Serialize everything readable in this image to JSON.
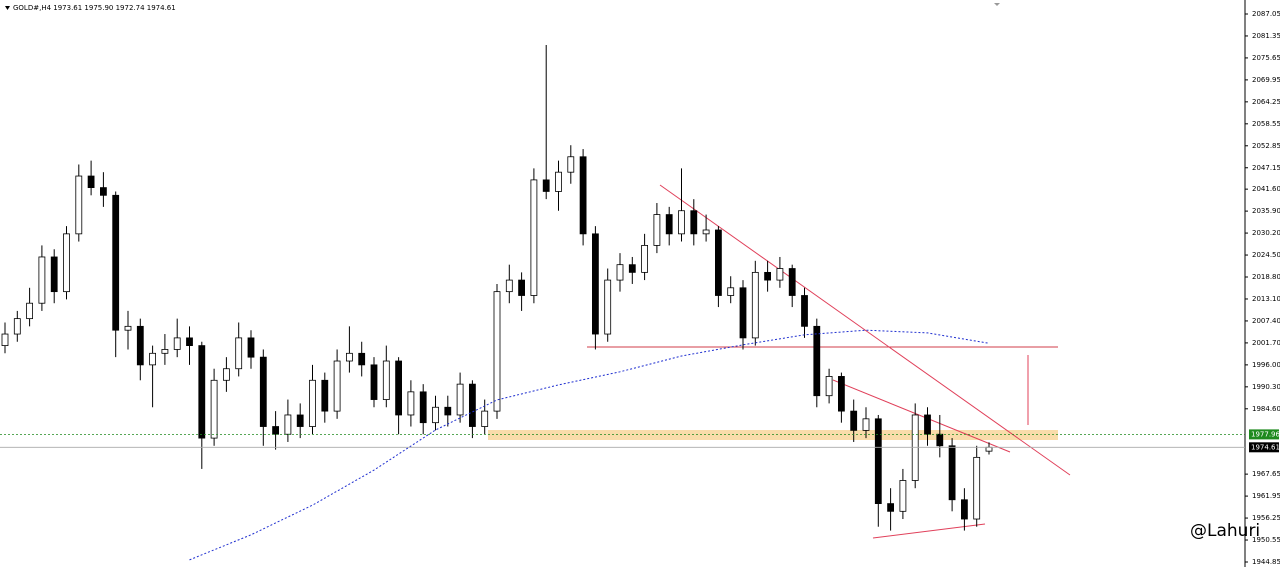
{
  "chart_data": {
    "type": "candlestick",
    "title": "GOLD#,H4  1973.61 1975.90 1972.74 1974.61",
    "watermark": "@Lahuri",
    "up_color": "#ffffff",
    "down_color": "#000000",
    "wick_color": "#000000",
    "open": [
      2001,
      2004,
      2008,
      2012,
      2024,
      2015,
      2030,
      2045,
      2042,
      2040,
      2005,
      2006,
      1996,
      1999,
      2000,
      2003,
      2001,
      1977,
      1992,
      1995,
      2003,
      1998,
      1980,
      1978,
      1983,
      1980,
      1992,
      1984,
      1997,
      1999,
      1996,
      1987,
      1997,
      1983,
      1989,
      1981,
      1985,
      1983,
      1991,
      1980,
      1984,
      2015,
      2018,
      2014,
      2044,
      2041,
      2046,
      2050,
      2030,
      2004,
      2018,
      2022,
      2020,
      2027,
      2035,
      2030,
      2036,
      2030,
      2031,
      2014,
      2016,
      2003,
      2020,
      2018,
      2021,
      2014,
      2006,
      1988,
      1993,
      1984,
      1979,
      1982,
      1960,
      1958,
      1966,
      1983,
      1978,
      1975,
      1961,
      1956,
      1973.61
    ],
    "high": [
      2007,
      2010,
      2016,
      2027,
      2026,
      2032,
      2048,
      2049,
      2046,
      2041,
      2010,
      2008,
      2001,
      2004,
      2008,
      2006,
      2002,
      1995,
      1998,
      2007,
      2005,
      2000,
      1984,
      1987,
      1986,
      1996,
      1994,
      2000,
      2006,
      2002,
      1998,
      2001,
      1998,
      1992,
      1991,
      1988,
      1988,
      1994,
      1992,
      1987,
      2017,
      2022,
      2020,
      2047,
      2079,
      2049,
      2053,
      2052,
      2032,
      2021,
      2025,
      2024,
      2030,
      2038,
      2037,
      2047,
      2039,
      2035,
      2032,
      2019,
      2018,
      2023,
      2023,
      2024,
      2022,
      2016,
      2008,
      1995,
      1994,
      1987,
      1985,
      1983,
      1964,
      1969,
      1986,
      1985,
      1983,
      1977,
      1964,
      1975,
      1975.9
    ],
    "low": [
      1999,
      2002,
      2006,
      2010,
      2012,
      2013,
      2028,
      2040,
      2037,
      1998,
      2000,
      1992,
      1985,
      1996,
      1998,
      1996,
      1969,
      1975,
      1989,
      1993,
      1995,
      1975,
      1974,
      1976,
      1977,
      1978,
      1981,
      1982,
      1994,
      1993,
      1985,
      1985,
      1978,
      1980,
      1978,
      1979,
      1980,
      1981,
      1977,
      1978,
      1982,
      2012,
      2010,
      2012,
      2039,
      2036,
      2043,
      2027,
      2000,
      2002,
      2015,
      2017,
      2018,
      2025,
      2027,
      2028,
      2027,
      2028,
      2011,
      2012,
      2000,
      2001,
      2015,
      2016,
      2011,
      2003,
      1985,
      1986,
      1981,
      1976,
      1977,
      1954,
      1953,
      1956,
      1964,
      1975,
      1972,
      1958,
      1953,
      1954,
      1972.74
    ],
    "close": [
      2004,
      2008,
      2012,
      2024,
      2015,
      2030,
      2045,
      2042,
      2040,
      2005,
      2006,
      1996,
      1999,
      2000,
      2003,
      2001,
      1977,
      1992,
      1995,
      2003,
      1998,
      1980,
      1978,
      1983,
      1980,
      1992,
      1984,
      1997,
      1999,
      1996,
      1987,
      1997,
      1983,
      1989,
      1981,
      1985,
      1983,
      1991,
      1980,
      1984,
      2015,
      2018,
      2014,
      2044,
      2041,
      2046,
      2050,
      2030,
      2004,
      2018,
      2022,
      2020,
      2027,
      2035,
      2030,
      2036,
      2030,
      2031,
      2014,
      2016,
      2003,
      2020,
      2018,
      2021,
      2014,
      2006,
      1988,
      1993,
      1984,
      1979,
      1982,
      1960,
      1958,
      1966,
      1983,
      1978,
      1975,
      1961,
      1956,
      1972,
      1974.61
    ],
    "moving_average": {
      "color": "#1f2fd0",
      "x": [
        15,
        20,
        25,
        30,
        35,
        40,
        45,
        50,
        55,
        60,
        65,
        70,
        75,
        80
      ],
      "values": [
        1945.4,
        1951.9,
        1959.6,
        1968.7,
        1979.1,
        1986.9,
        1990.8,
        1994.2,
        1998.3,
        2001.2,
        2003.8,
        2005.0,
        2004.3,
        2001.6
      ]
    },
    "price_lines": [
      {
        "value": 1977.96,
        "label": "1977.96",
        "color": "#1e8a1e"
      },
      {
        "value": 1974.61,
        "label": "1974.61",
        "color": "#000000"
      }
    ],
    "ylim": [
      1943.55,
      2090.68
    ],
    "yticks": [
      {
        "value": 2087.05,
        "label": "2087.05"
      },
      {
        "value": 2081.35,
        "label": "2081.35"
      },
      {
        "value": 2075.65,
        "label": "2075.65"
      },
      {
        "value": 2069.95,
        "label": "2069.95"
      },
      {
        "value": 2064.25,
        "label": "2064.25"
      },
      {
        "value": 2058.55,
        "label": "2058.55"
      },
      {
        "value": 2052.85,
        "label": "2052.85"
      },
      {
        "value": 2047.15,
        "label": "2047.15"
      },
      {
        "value": 2041.6,
        "label": "2041.60"
      },
      {
        "value": 2035.9,
        "label": "2035.90"
      },
      {
        "value": 2030.2,
        "label": "2030.20"
      },
      {
        "value": 2024.5,
        "label": "2024.50"
      },
      {
        "value": 2018.8,
        "label": "2018.80"
      },
      {
        "value": 2013.1,
        "label": "2013.10"
      },
      {
        "value": 2007.4,
        "label": "2007.40"
      },
      {
        "value": 2001.7,
        "label": "2001.70"
      },
      {
        "value": 1996.0,
        "label": "1996.00"
      },
      {
        "value": 1990.3,
        "label": "1990.30"
      },
      {
        "value": 1984.6,
        "label": "1984.60"
      },
      {
        "value": 1967.65,
        "label": "1967.65"
      },
      {
        "value": 1961.95,
        "label": "1961.95"
      },
      {
        "value": 1956.25,
        "label": "1956.25"
      },
      {
        "value": 1950.55,
        "label": "1950.55"
      },
      {
        "value": 1944.85,
        "label": "1944.85"
      }
    ],
    "grid": false
  }
}
